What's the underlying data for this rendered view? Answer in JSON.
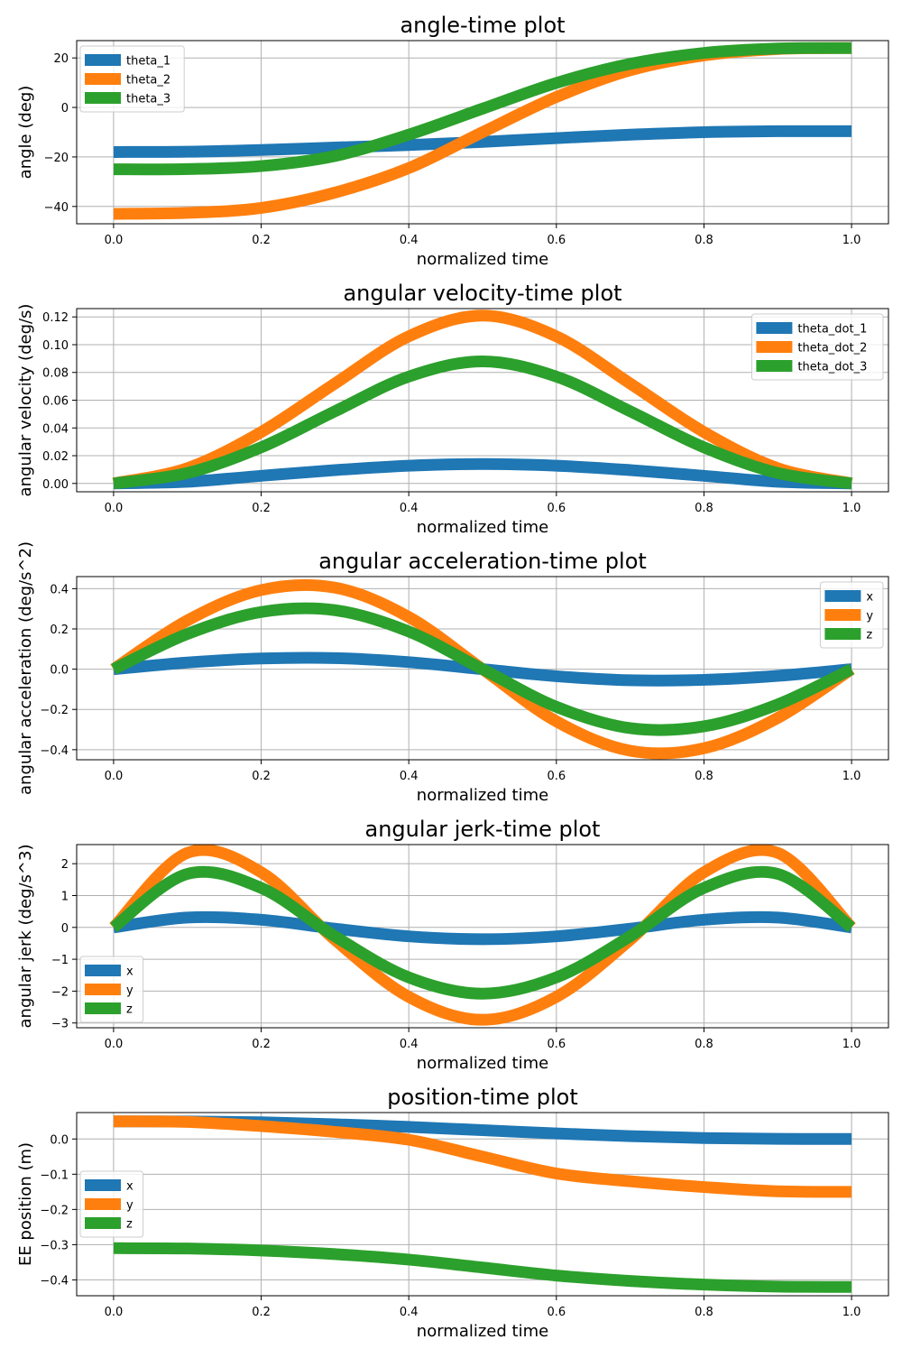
{
  "figure": {
    "background": "#ffffff",
    "grid_color": "#b0b0b0",
    "frame_color": "#000000"
  },
  "chart_data": [
    {
      "type": "line",
      "title": "angle-time plot",
      "xlabel": "normalized time",
      "ylabel": "angle (deg)",
      "xlim": [
        -0.05,
        1.05
      ],
      "ylim": [
        -47,
        27
      ],
      "xticks": [
        0.0,
        0.2,
        0.4,
        0.6,
        0.8,
        1.0
      ],
      "xtick_labels": [
        "0.0",
        "0.2",
        "0.4",
        "0.6",
        "0.8",
        "1.0"
      ],
      "yticks": [
        -40,
        -20,
        0,
        20
      ],
      "ytick_labels": [
        "−40",
        "−20",
        "0",
        "20"
      ],
      "grid": true,
      "legend_position": "upper-left",
      "x": [
        0.0,
        0.1,
        0.2,
        0.3,
        0.4,
        0.5,
        0.6,
        0.7,
        0.8,
        0.9,
        1.0
      ],
      "series": [
        {
          "name": "theta_1",
          "color": "#1f77b4",
          "values": [
            -18.0,
            -17.9,
            -17.2,
            -16.2,
            -15.2,
            -13.9,
            -12.4,
            -11.0,
            -10.0,
            -9.6,
            -9.6
          ]
        },
        {
          "name": "theta_2",
          "color": "#ff7f0e",
          "values": [
            -43.0,
            -42.6,
            -40.6,
            -34.4,
            -24.5,
            -10.0,
            4.2,
            15.0,
            21.0,
            23.6,
            24.0
          ]
        },
        {
          "name": "theta_3",
          "color": "#2ca02c",
          "values": [
            -25.0,
            -24.9,
            -23.7,
            -19.6,
            -11.0,
            -0.5,
            9.9,
            17.6,
            22.0,
            23.8,
            24.0
          ]
        }
      ]
    },
    {
      "type": "line",
      "title": "angular velocity-time plot",
      "xlabel": "normalized time",
      "ylabel": "angular velocity (deg/s)",
      "xlim": [
        -0.05,
        1.05
      ],
      "ylim": [
        -0.006,
        0.126
      ],
      "xticks": [
        0.0,
        0.2,
        0.4,
        0.6,
        0.8,
        1.0
      ],
      "xtick_labels": [
        "0.0",
        "0.2",
        "0.4",
        "0.6",
        "0.8",
        "1.0"
      ],
      "yticks": [
        0.0,
        0.02,
        0.04,
        0.06,
        0.08,
        0.1,
        0.12
      ],
      "ytick_labels": [
        "0.00",
        "0.02",
        "0.04",
        "0.06",
        "0.08",
        "0.10",
        "0.12"
      ],
      "grid": true,
      "legend_position": "upper-right",
      "x": [
        0.0,
        0.1,
        0.2,
        0.3,
        0.4,
        0.5,
        0.6,
        0.7,
        0.8,
        0.9,
        1.0
      ],
      "series": [
        {
          "name": "theta_dot_1",
          "color": "#1f77b4",
          "values": [
            0.0,
            0.0012,
            0.0055,
            0.0096,
            0.0128,
            0.014,
            0.0128,
            0.0096,
            0.0055,
            0.0012,
            0.0
          ]
        },
        {
          "name": "theta_dot_2",
          "color": "#ff7f0e",
          "values": [
            0.0,
            0.011,
            0.037,
            0.072,
            0.106,
            0.121,
            0.106,
            0.072,
            0.037,
            0.011,
            0.0
          ]
        },
        {
          "name": "theta_dot_3",
          "color": "#2ca02c",
          "values": [
            0.0,
            0.0075,
            0.026,
            0.052,
            0.077,
            0.088,
            0.077,
            0.052,
            0.026,
            0.0075,
            0.0
          ]
        }
      ]
    },
    {
      "type": "line",
      "title": "angular acceleration-time plot",
      "xlabel": "normalized time",
      "ylabel": "angular acceleration (deg/s^2)",
      "xlim": [
        -0.05,
        1.05
      ],
      "ylim": [
        -0.45,
        0.46
      ],
      "xticks": [
        0.0,
        0.2,
        0.4,
        0.6,
        0.8,
        1.0
      ],
      "xtick_labels": [
        "0.0",
        "0.2",
        "0.4",
        "0.6",
        "0.8",
        "1.0"
      ],
      "yticks": [
        -0.4,
        -0.2,
        0.0,
        0.2,
        0.4
      ],
      "ytick_labels": [
        "−0.4",
        "−0.2",
        "0.0",
        "0.2",
        "0.4"
      ],
      "grid": true,
      "legend_position": "upper-right",
      "x": [
        0.0,
        0.1,
        0.2,
        0.3,
        0.4,
        0.5,
        0.6,
        0.7,
        0.8,
        0.9,
        1.0
      ],
      "series": [
        {
          "name": "x",
          "color": "#1f77b4",
          "values": [
            0.0,
            0.033,
            0.053,
            0.055,
            0.035,
            0.0,
            -0.035,
            -0.055,
            -0.053,
            -0.033,
            0.0
          ]
        },
        {
          "name": "y",
          "color": "#ff7f0e",
          "values": [
            0.0,
            0.242,
            0.393,
            0.405,
            0.259,
            0.0,
            -0.259,
            -0.405,
            -0.393,
            -0.242,
            0.0
          ]
        },
        {
          "name": "z",
          "color": "#2ca02c",
          "values": [
            0.0,
            0.175,
            0.284,
            0.293,
            0.187,
            0.0,
            -0.187,
            -0.293,
            -0.284,
            -0.175,
            0.0
          ]
        }
      ]
    },
    {
      "type": "line",
      "title": "angular jerk-time plot",
      "xlabel": "normalized time",
      "ylabel": "angular jerk (deg/s^3)",
      "xlim": [
        -0.05,
        1.05
      ],
      "ylim": [
        -3.15,
        2.6
      ],
      "xticks": [
        0.0,
        0.2,
        0.4,
        0.6,
        0.8,
        1.0
      ],
      "xtick_labels": [
        "0.0",
        "0.2",
        "0.4",
        "0.6",
        "0.8",
        "1.0"
      ],
      "yticks": [
        -3,
        -2,
        -1,
        0,
        1,
        2
      ],
      "ytick_labels": [
        "−3",
        "−2",
        "−1",
        "0",
        "1",
        "2"
      ],
      "grid": true,
      "legend_position": "lower-left",
      "x": [
        0.0,
        0.1,
        0.2,
        0.3,
        0.4,
        0.5,
        0.6,
        0.7,
        0.8,
        0.9,
        1.0
      ],
      "series": [
        {
          "name": "x",
          "color": "#1f77b4",
          "values": [
            0.0,
            0.31,
            0.24,
            -0.04,
            -0.28,
            -0.37,
            -0.28,
            -0.04,
            0.24,
            0.31,
            0.0
          ]
        },
        {
          "name": "y",
          "color": "#ff7f0e",
          "values": [
            0.0,
            2.34,
            1.73,
            -0.39,
            -2.18,
            -2.9,
            -2.18,
            -0.39,
            1.73,
            2.34,
            0.0
          ]
        },
        {
          "name": "z",
          "color": "#2ca02c",
          "values": [
            0.0,
            1.68,
            1.24,
            -0.28,
            -1.57,
            -2.08,
            -1.57,
            -0.28,
            1.24,
            1.68,
            0.0
          ]
        }
      ]
    },
    {
      "type": "line",
      "title": "position-time plot",
      "xlabel": "normalized time",
      "ylabel": "EE position (m)",
      "xlim": [
        -0.05,
        1.05
      ],
      "ylim": [
        -0.445,
        0.075
      ],
      "xticks": [
        0.0,
        0.2,
        0.4,
        0.6,
        0.8,
        1.0
      ],
      "xtick_labels": [
        "0.0",
        "0.2",
        "0.4",
        "0.6",
        "0.8",
        "1.0"
      ],
      "yticks": [
        -0.4,
        -0.3,
        -0.2,
        -0.1,
        0.0
      ],
      "ytick_labels": [
        "−0.4",
        "−0.3",
        "−0.2",
        "−0.1",
        "0.0"
      ],
      "grid": true,
      "legend_position": "center-left",
      "x": [
        0.0,
        0.1,
        0.2,
        0.3,
        0.4,
        0.5,
        0.6,
        0.7,
        0.8,
        0.9,
        1.0
      ],
      "series": [
        {
          "name": "x",
          "color": "#1f77b4",
          "values": [
            0.05,
            0.0497,
            0.0473,
            0.0418,
            0.0342,
            0.025,
            0.0158,
            0.0082,
            0.0027,
            0.0003,
            0.0
          ]
        },
        {
          "name": "y",
          "color": "#ff7f0e",
          "values": [
            0.05,
            0.0485,
            0.0365,
            0.0201,
            -0.0021,
            -0.05,
            -0.0979,
            -0.1201,
            -0.1365,
            -0.1485,
            -0.15
          ]
        },
        {
          "name": "z",
          "color": "#2ca02c",
          "values": [
            -0.31,
            -0.3109,
            -0.3166,
            -0.3269,
            -0.3424,
            -0.365,
            -0.3876,
            -0.4031,
            -0.4134,
            -0.4191,
            -0.42
          ]
        }
      ]
    }
  ]
}
